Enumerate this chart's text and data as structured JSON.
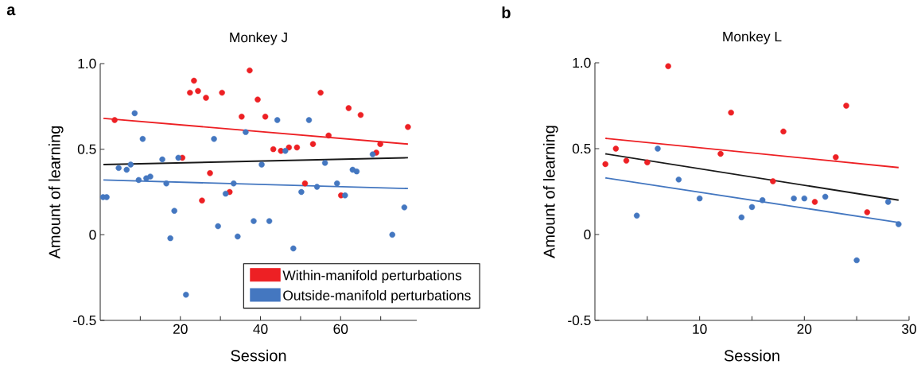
{
  "chart_data": [
    {
      "type": "scatter",
      "title": "Monkey J",
      "xlabel": "Session",
      "ylabel": "Amount of learning",
      "annotations": [
        "a"
      ],
      "xlim": [
        0,
        79
      ],
      "ylim": [
        -0.5,
        1.0
      ],
      "xticks": [
        {
          "value": 10,
          "label": null
        },
        20,
        {
          "value": 30,
          "label": null
        },
        40,
        {
          "value": 50,
          "label": null
        },
        60,
        {
          "value": 70,
          "label": null
        }
      ],
      "yticks": [
        -0.5,
        0,
        0.5,
        {
          "value": 1,
          "label": "1.0"
        }
      ],
      "legend": "bottom right",
      "series": [
        {
          "name": "Within-manifold perturbations",
          "color": "#ed2024",
          "x": [
            3.6,
            20.5,
            22.4,
            23.4,
            24.4,
            25.4,
            26.4,
            27.4,
            30.4,
            32.3,
            35.3,
            37.3,
            39.3,
            41.2,
            43.2,
            45.1,
            47.1,
            49.1,
            51.1,
            53.1,
            55.0,
            57.0,
            60.1,
            62.0,
            65.0,
            68.9,
            69.9,
            76.8
          ],
          "values": [
            0.67,
            0.45,
            0.83,
            0.9,
            0.84,
            0.2,
            0.8,
            0.36,
            0.83,
            0.25,
            0.69,
            0.96,
            0.79,
            0.69,
            0.5,
            0.49,
            0.51,
            0.51,
            0.3,
            0.53,
            0.83,
            0.58,
            0.23,
            0.74,
            0.7,
            0.48,
            0.53,
            0.63
          ]
        },
        {
          "name": "Outside-manifold perturbations",
          "color": "#4477c0",
          "x": [
            0.7,
            1.6,
            4.6,
            6.6,
            7.6,
            8.6,
            9.6,
            10.6,
            11.5,
            12.5,
            15.5,
            16.5,
            17.5,
            18.5,
            19.5,
            21.4,
            28.4,
            29.4,
            31.3,
            33.3,
            34.3,
            36.3,
            38.3,
            40.3,
            42.2,
            44.2,
            46.2,
            48.2,
            50.2,
            52.1,
            54.1,
            56.1,
            59.1,
            61.1,
            63.0,
            64.0,
            68.0,
            72.9,
            75.9
          ],
          "values": [
            0.22,
            0.22,
            0.39,
            0.38,
            0.41,
            0.71,
            0.32,
            0.56,
            0.33,
            0.34,
            0.44,
            0.3,
            -0.02,
            0.14,
            0.45,
            -0.35,
            0.56,
            0.05,
            0.24,
            0.3,
            -0.01,
            0.6,
            0.08,
            0.41,
            0.08,
            0.67,
            0.49,
            -0.08,
            0.25,
            0.67,
            0.28,
            0.42,
            0.3,
            0.23,
            0.38,
            0.37,
            0.47,
            0.0,
            0.16
          ]
        },
        {
          "type": "line",
          "marker": "none",
          "color": "#ed2024",
          "x": [
            0.8,
            76.8
          ],
          "values": [
            0.68,
            0.53
          ]
        },
        {
          "type": "line",
          "marker": "none",
          "color": "#1a1a1a",
          "x": [
            0.8,
            76.8
          ],
          "values": [
            0.41,
            0.45
          ]
        },
        {
          "type": "line",
          "marker": "none",
          "color": "#4477c0",
          "x": [
            0.8,
            76.8
          ],
          "values": [
            0.32,
            0.27
          ]
        }
      ]
    },
    {
      "type": "scatter",
      "title": "Monkey L",
      "xlabel": "Session",
      "ylabel": "Amount of learning",
      "annotations": [
        "b"
      ],
      "xlim": [
        0,
        30
      ],
      "ylim": [
        -0.5,
        1.0
      ],
      "xticks": [
        {
          "value": 5,
          "label": null
        },
        10,
        {
          "value": 15,
          "label": null
        },
        20,
        {
          "value": 25,
          "label": null
        },
        30
      ],
      "yticks": [
        -0.5,
        0,
        0.5,
        {
          "value": 1,
          "label": "1.0"
        }
      ],
      "series": [
        {
          "color": "#ed2024",
          "x": [
            1,
            2,
            3,
            5,
            7,
            12,
            13,
            17,
            18,
            21,
            23,
            24,
            26
          ],
          "values": [
            0.41,
            0.5,
            0.43,
            0.42,
            0.98,
            0.47,
            0.71,
            0.31,
            0.6,
            0.19,
            0.45,
            0.75,
            0.13
          ]
        },
        {
          "color": "#4477c0",
          "x": [
            4,
            6,
            8,
            10,
            14,
            15,
            16,
            19,
            20,
            22,
            25,
            28,
            29
          ],
          "values": [
            0.11,
            0.5,
            0.32,
            0.21,
            0.1,
            0.16,
            0.2,
            0.21,
            0.21,
            0.22,
            -0.15,
            0.19,
            0.06
          ]
        },
        {
          "type": "line",
          "marker": "none",
          "color": "#ed2024",
          "x": [
            1,
            29
          ],
          "values": [
            0.56,
            0.39
          ]
        },
        {
          "type": "line",
          "marker": "none",
          "color": "#1a1a1a",
          "x": [
            1,
            29
          ],
          "values": [
            0.47,
            0.2
          ]
        },
        {
          "type": "line",
          "marker": "none",
          "color": "#4477c0",
          "x": [
            1,
            29
          ],
          "values": [
            0.33,
            0.07
          ]
        }
      ]
    }
  ]
}
